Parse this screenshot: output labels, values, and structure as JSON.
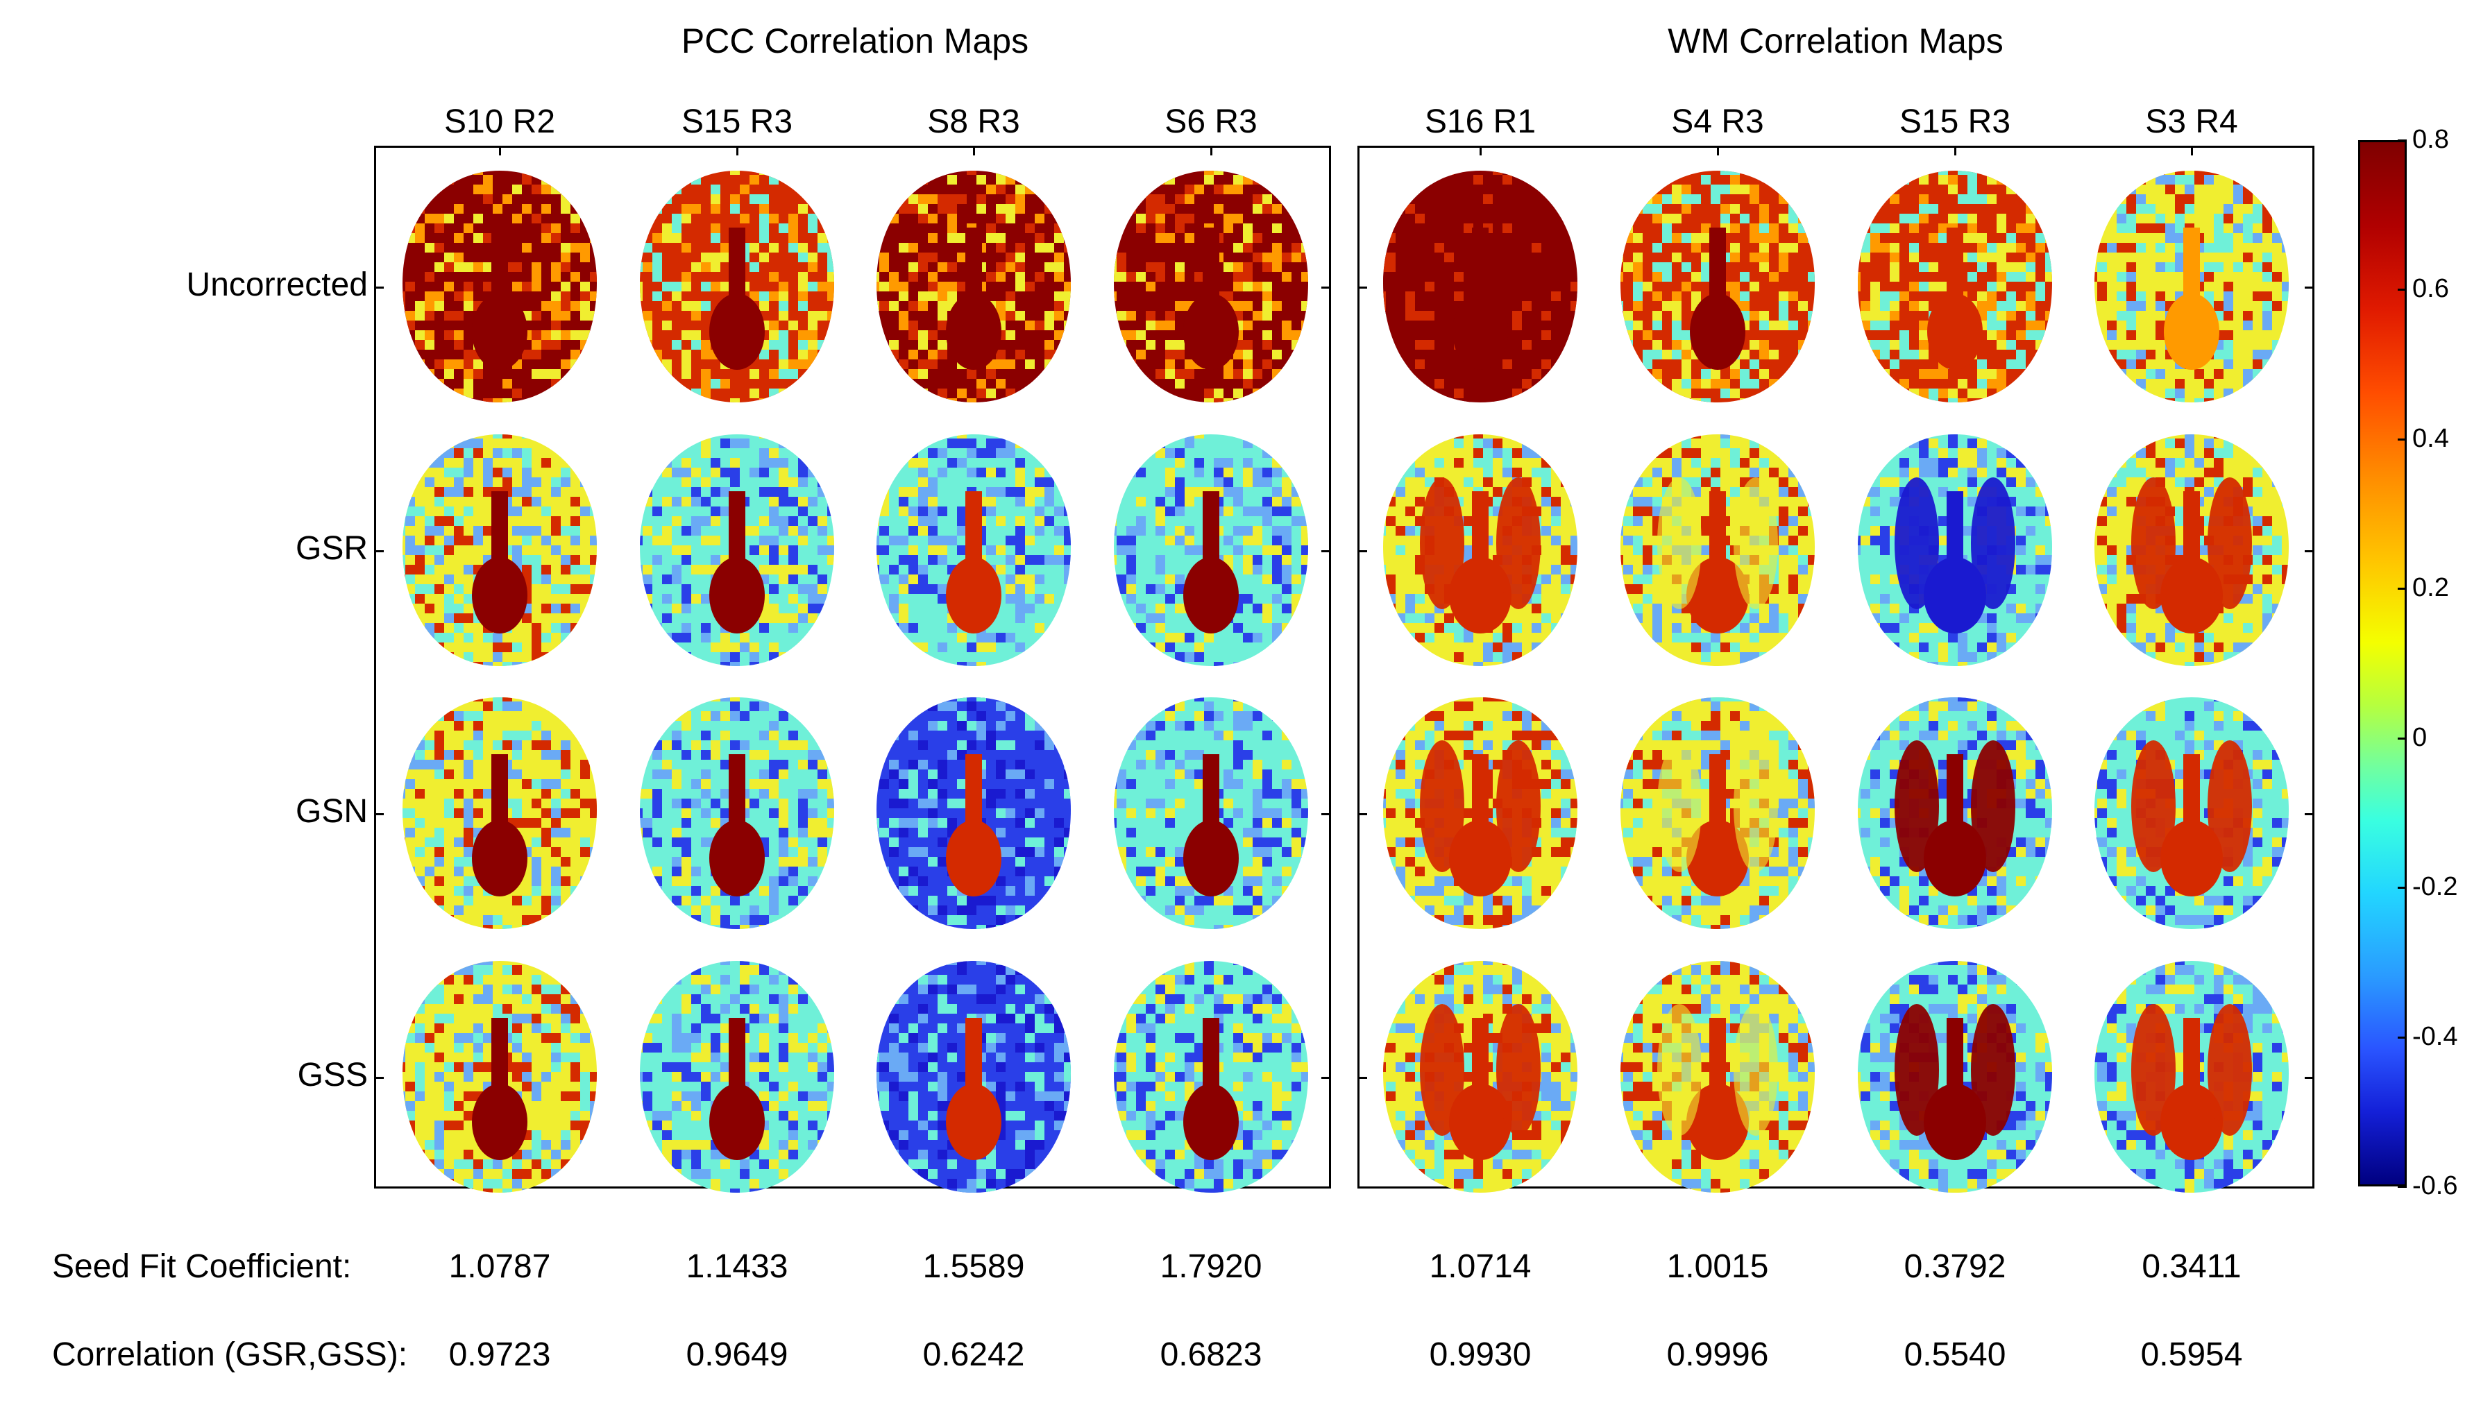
{
  "panels": {
    "left_title": "PCC Correlation Maps",
    "right_title": "WM Correlation Maps"
  },
  "columns": [
    "S10 R2",
    "S15 R3",
    "S8 R3",
    "S6 R3",
    "S16 R1",
    "S4 R3",
    "S15 R3",
    "S3 R4"
  ],
  "rows": [
    "Uncorrected",
    "GSR",
    "GSN",
    "GSS"
  ],
  "colorbar": {
    "ticks": [
      "0.8",
      "0.6",
      "0.4",
      "0.2",
      "0",
      "-0.2",
      "-0.4",
      "-0.6"
    ],
    "range": [
      -0.6,
      0.8
    ],
    "colormap": "jet"
  },
  "stats": {
    "seed_fit_label": "Seed Fit Coefficient:",
    "seed_fit_values": [
      "1.0787",
      "1.1433",
      "1.5589",
      "1.7920",
      "1.0714",
      "1.0015",
      "0.3792",
      "0.3411"
    ],
    "correlation_label": "Correlation (GSR,GSS):",
    "correlation_values": [
      "0.9723",
      "0.9649",
      "0.6242",
      "0.6823",
      "0.9930",
      "0.9996",
      "0.5540",
      "0.5954"
    ]
  },
  "maps": {
    "colors": {
      "high": "#8b0000",
      "red": "#d42a00",
      "orange": "#ff9a00",
      "yellow": "#f0ee30",
      "cyan": "#6ff0d8",
      "light_blue": "#6aaaf5",
      "blue": "#2a3fe8",
      "dark_blue": "#1a1ad0"
    }
  }
}
